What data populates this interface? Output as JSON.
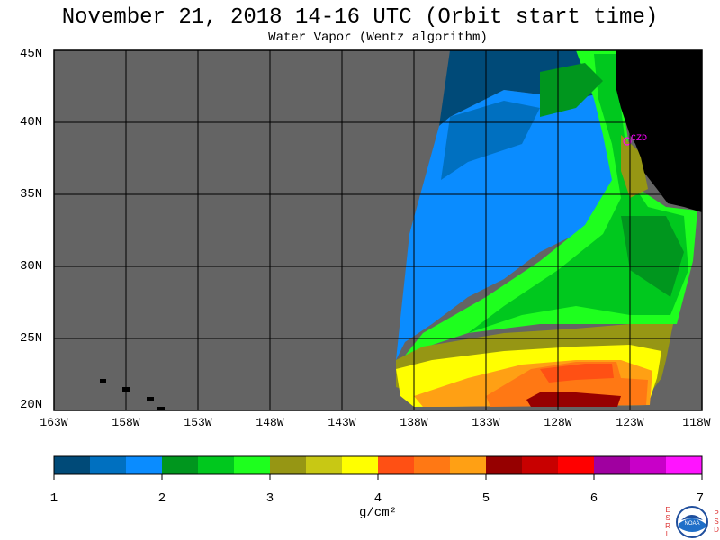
{
  "title": "November 21, 2018  14-16 UTC  (Orbit start time)",
  "subtitle": "Water Vapor (Wentz algorithm)",
  "map": {
    "lat_labels": [
      "45N",
      "40N",
      "35N",
      "30N",
      "25N",
      "20N"
    ],
    "lon_labels": [
      "163W",
      "158W",
      "153W",
      "148W",
      "143W",
      "138W",
      "133W",
      "128W",
      "123W",
      "118W"
    ],
    "lat_range": [
      20,
      45
    ],
    "lon_range": [
      -163,
      -118
    ],
    "station_label": "CZD",
    "colors": {
      "no_data": "#646464",
      "land": "#000000",
      "grid": "#000000",
      "station": "#ff00ff"
    }
  },
  "colorbar": {
    "ticks": [
      "1",
      "2",
      "3",
      "4",
      "5",
      "6",
      "7"
    ],
    "range": [
      1,
      7
    ],
    "unit": "g/cm²",
    "colors": [
      "#004a78",
      "#0070c0",
      "#0a8cff",
      "#00961e",
      "#00c81e",
      "#1eff1e",
      "#969614",
      "#c8c814",
      "#ffff00",
      "#ff5014",
      "#ff7814",
      "#ffa014",
      "#960000",
      "#c80000",
      "#ff0000",
      "#a000a0",
      "#c800c8",
      "#ff14ff"
    ]
  },
  "logo": {
    "left_letters": [
      "E",
      "S",
      "R",
      "L"
    ],
    "right_letters": [
      "P",
      "S",
      "D"
    ],
    "emblem": "NOAA"
  }
}
